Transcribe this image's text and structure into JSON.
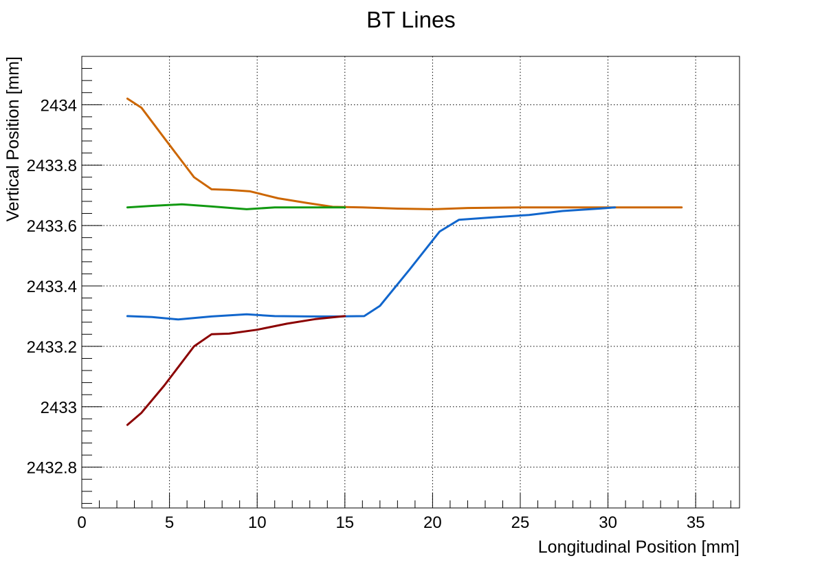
{
  "chart_data": {
    "type": "line",
    "title": "BT Lines",
    "xlabel": "Longitudinal Position [mm]",
    "ylabel": "Vertical Position [mm]",
    "xlim": [
      0,
      37.5
    ],
    "ylim": [
      2432.665,
      2434.16
    ],
    "x_ticks": [
      0,
      5,
      10,
      15,
      20,
      25,
      30,
      35
    ],
    "x_tick_labels": [
      "0",
      "5",
      "10",
      "15",
      "20",
      "25",
      "30",
      "35"
    ],
    "y_ticks": [
      2432.8,
      2433.0,
      2433.2,
      2433.4,
      2433.6,
      2433.8,
      2434.0
    ],
    "y_tick_labels": [
      "2432.8",
      "2433",
      "2433.2",
      "2433.4",
      "2433.6",
      "2433.8",
      "2434"
    ],
    "grid": true,
    "series": [
      {
        "color": "#cc6600",
        "x": [
          2.6,
          3.4,
          4.7,
          6.4,
          7.4,
          8.4,
          9.6,
          11.2,
          12.8,
          14.3,
          16.0,
          18.0,
          20.0,
          22.0,
          25.0,
          28.0,
          30.0,
          32.0,
          34.2
        ],
        "y": [
          2434.02,
          2433.99,
          2433.89,
          2433.76,
          2433.72,
          2433.718,
          2433.713,
          2433.69,
          2433.675,
          2433.662,
          2433.66,
          2433.656,
          2433.654,
          2433.658,
          2433.66,
          2433.66,
          2433.66,
          2433.66,
          2433.66
        ]
      },
      {
        "color": "#119911",
        "x": [
          2.6,
          4.0,
          5.7,
          7.4,
          9.4,
          11.0,
          13.0,
          15.0
        ],
        "y": [
          2433.66,
          2433.665,
          2433.67,
          2433.663,
          2433.654,
          2433.66,
          2433.66,
          2433.66
        ]
      },
      {
        "color": "#1166cc",
        "x": [
          2.6,
          4.0,
          5.5,
          7.4,
          9.4,
          11.0,
          13.0,
          14.6,
          16.1,
          17.0,
          18.7,
          20.4,
          21.5,
          23.4,
          25.5,
          27.4,
          29.5,
          30.4
        ],
        "y": [
          2433.3,
          2433.297,
          2433.289,
          2433.299,
          2433.306,
          2433.3,
          2433.299,
          2433.299,
          2433.3,
          2433.334,
          2433.455,
          2433.58,
          2433.619,
          2433.627,
          2433.635,
          2433.648,
          2433.656,
          2433.66
        ]
      },
      {
        "color": "#8b0000",
        "x": [
          2.6,
          3.4,
          4.7,
          6.4,
          7.4,
          8.4,
          10.0,
          11.7,
          13.3,
          15.0
        ],
        "y": [
          2432.94,
          2432.98,
          2433.07,
          2433.2,
          2433.24,
          2433.242,
          2433.255,
          2433.275,
          2433.29,
          2433.3
        ]
      }
    ]
  }
}
